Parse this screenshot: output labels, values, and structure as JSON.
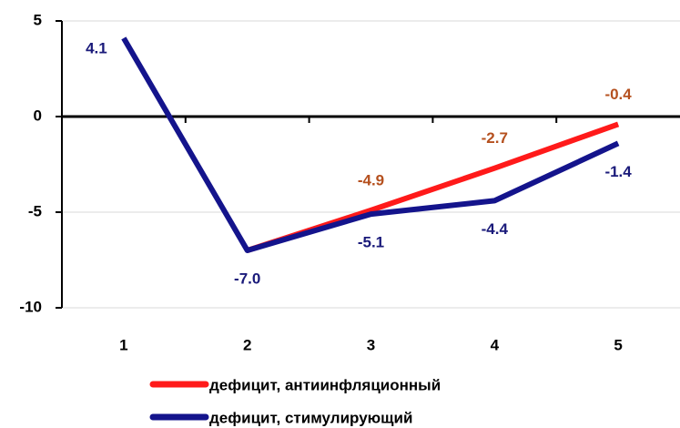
{
  "chart_data": {
    "type": "line",
    "categories": [
      "1",
      "2",
      "3",
      "4",
      "5"
    ],
    "series": [
      {
        "name": "дефицит, антиинфляционный",
        "color": "#ff1a1a",
        "label_color": "#b5501e",
        "values": [
          null,
          -7.0,
          -4.9,
          -2.7,
          -0.4
        ],
        "value_labels": [
          null,
          null,
          "-4.9",
          "-2.7",
          "-0.4"
        ]
      },
      {
        "name": "дефицит, стимулирующий",
        "color": "#14148c",
        "label_color": "#1a1a7a",
        "values": [
          4.1,
          -7.0,
          -5.1,
          -4.4,
          -1.4
        ],
        "value_labels": [
          "4.1",
          "-7.0",
          "-5.1",
          "-4.4",
          "-1.4"
        ]
      }
    ],
    "ylim": [
      -10,
      5
    ],
    "yticks": [
      -10,
      -5,
      0,
      5
    ],
    "grid": true,
    "legend": "bottom"
  }
}
